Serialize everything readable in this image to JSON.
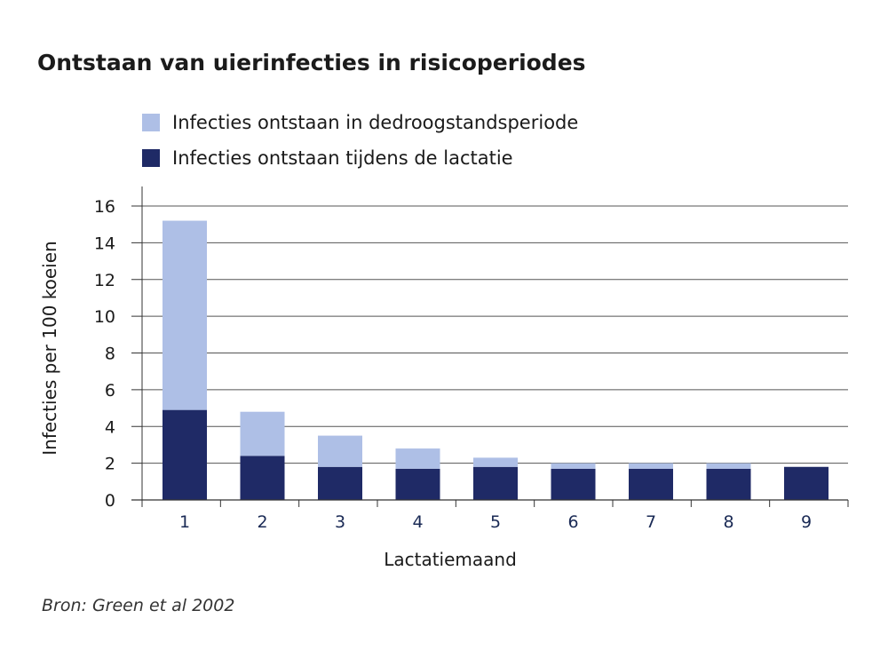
{
  "chart_data": {
    "type": "bar",
    "stacked": true,
    "title": "Ontstaan van uierinfecties in risicoperiodes",
    "xlabel": "Lactatiemaand",
    "ylabel": "Infecties per 100 koeien",
    "categories": [
      "1",
      "2",
      "3",
      "4",
      "5",
      "6",
      "7",
      "8",
      "9"
    ],
    "ylim": [
      0,
      16
    ],
    "yticks": [
      0,
      2,
      4,
      6,
      8,
      10,
      12,
      14,
      16
    ],
    "grid": true,
    "legend_position": "top",
    "series": [
      {
        "name": "Infecties ontstaan tijdens de lactatie",
        "color": "#1f2a66",
        "values": [
          4.9,
          2.4,
          1.8,
          1.7,
          1.8,
          1.7,
          1.7,
          1.7,
          1.8
        ]
      },
      {
        "name": "Infecties ontstaan in dedroogstandsperiode",
        "color": "#aebfe6",
        "values": [
          10.3,
          2.4,
          1.7,
          1.1,
          0.5,
          0.3,
          0.3,
          0.3,
          0.0
        ]
      }
    ]
  },
  "source": "Bron: Green et al 2002"
}
